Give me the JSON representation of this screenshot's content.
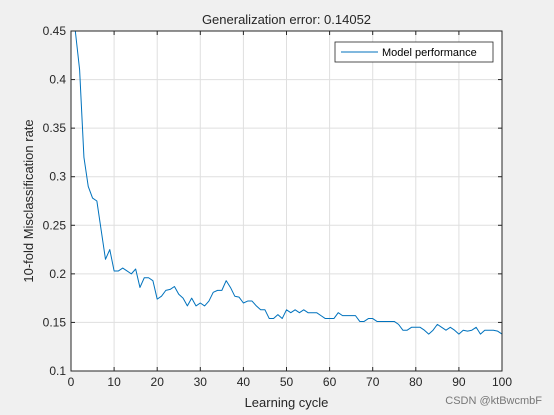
{
  "chart_data": {
    "type": "line",
    "title": "Generalization error: 0.14052",
    "xlabel": "Learning cycle",
    "ylabel": "10-fold Misclassification rate",
    "xlim": [
      0,
      100
    ],
    "ylim": [
      0.1,
      0.45
    ],
    "x_ticks": [
      0,
      10,
      20,
      30,
      40,
      50,
      60,
      70,
      80,
      90,
      100
    ],
    "y_ticks": [
      0.1,
      0.15,
      0.2,
      0.25,
      0.3,
      0.35,
      0.4,
      0.45
    ],
    "x_tick_labels": [
      "0",
      "10",
      "20",
      "30",
      "40",
      "50",
      "60",
      "70",
      "80",
      "90",
      "100"
    ],
    "y_tick_labels": [
      "0.1",
      "0.15",
      "0.2",
      "0.25",
      "0.3",
      "0.35",
      "0.4",
      "0.45"
    ],
    "grid": true,
    "legend": {
      "position": "top-right"
    },
    "series": [
      {
        "name": "Model performance",
        "color": "#0072bd",
        "x": [
          1,
          2,
          3,
          4,
          5,
          6,
          7,
          8,
          9,
          10,
          11,
          12,
          13,
          14,
          15,
          16,
          17,
          18,
          19,
          20,
          21,
          22,
          23,
          24,
          25,
          26,
          27,
          28,
          29,
          30,
          31,
          32,
          33,
          34,
          35,
          36,
          37,
          38,
          39,
          40,
          41,
          42,
          43,
          44,
          45,
          46,
          47,
          48,
          49,
          50,
          51,
          52,
          53,
          54,
          55,
          56,
          57,
          58,
          59,
          60,
          61,
          62,
          63,
          64,
          65,
          66,
          67,
          68,
          69,
          70,
          71,
          72,
          73,
          74,
          75,
          76,
          77,
          78,
          79,
          80,
          81,
          82,
          83,
          84,
          85,
          86,
          87,
          88,
          89,
          90,
          91,
          92,
          93,
          94,
          95,
          96,
          97,
          98,
          99,
          100
        ],
        "values": [
          0.45,
          0.41,
          0.32,
          0.29,
          0.278,
          0.275,
          0.245,
          0.215,
          0.225,
          0.203,
          0.203,
          0.206,
          0.203,
          0.2,
          0.205,
          0.186,
          0.196,
          0.196,
          0.193,
          0.174,
          0.177,
          0.183,
          0.184,
          0.187,
          0.179,
          0.175,
          0.167,
          0.175,
          0.167,
          0.17,
          0.167,
          0.172,
          0.181,
          0.183,
          0.183,
          0.193,
          0.186,
          0.177,
          0.176,
          0.17,
          0.172,
          0.172,
          0.167,
          0.163,
          0.163,
          0.154,
          0.154,
          0.158,
          0.154,
          0.163,
          0.16,
          0.163,
          0.16,
          0.163,
          0.16,
          0.16,
          0.16,
          0.157,
          0.154,
          0.154,
          0.154,
          0.16,
          0.157,
          0.157,
          0.157,
          0.157,
          0.151,
          0.151,
          0.154,
          0.154,
          0.151,
          0.151,
          0.151,
          0.151,
          0.151,
          0.148,
          0.142,
          0.142,
          0.145,
          0.145,
          0.145,
          0.142,
          0.138,
          0.142,
          0.148,
          0.145,
          0.142,
          0.145,
          0.142,
          0.138,
          0.142,
          0.141,
          0.142,
          0.145,
          0.138,
          0.142,
          0.142,
          0.142,
          0.141,
          0.138
        ]
      }
    ]
  },
  "watermark": "CSDN @ktBwcmbF"
}
